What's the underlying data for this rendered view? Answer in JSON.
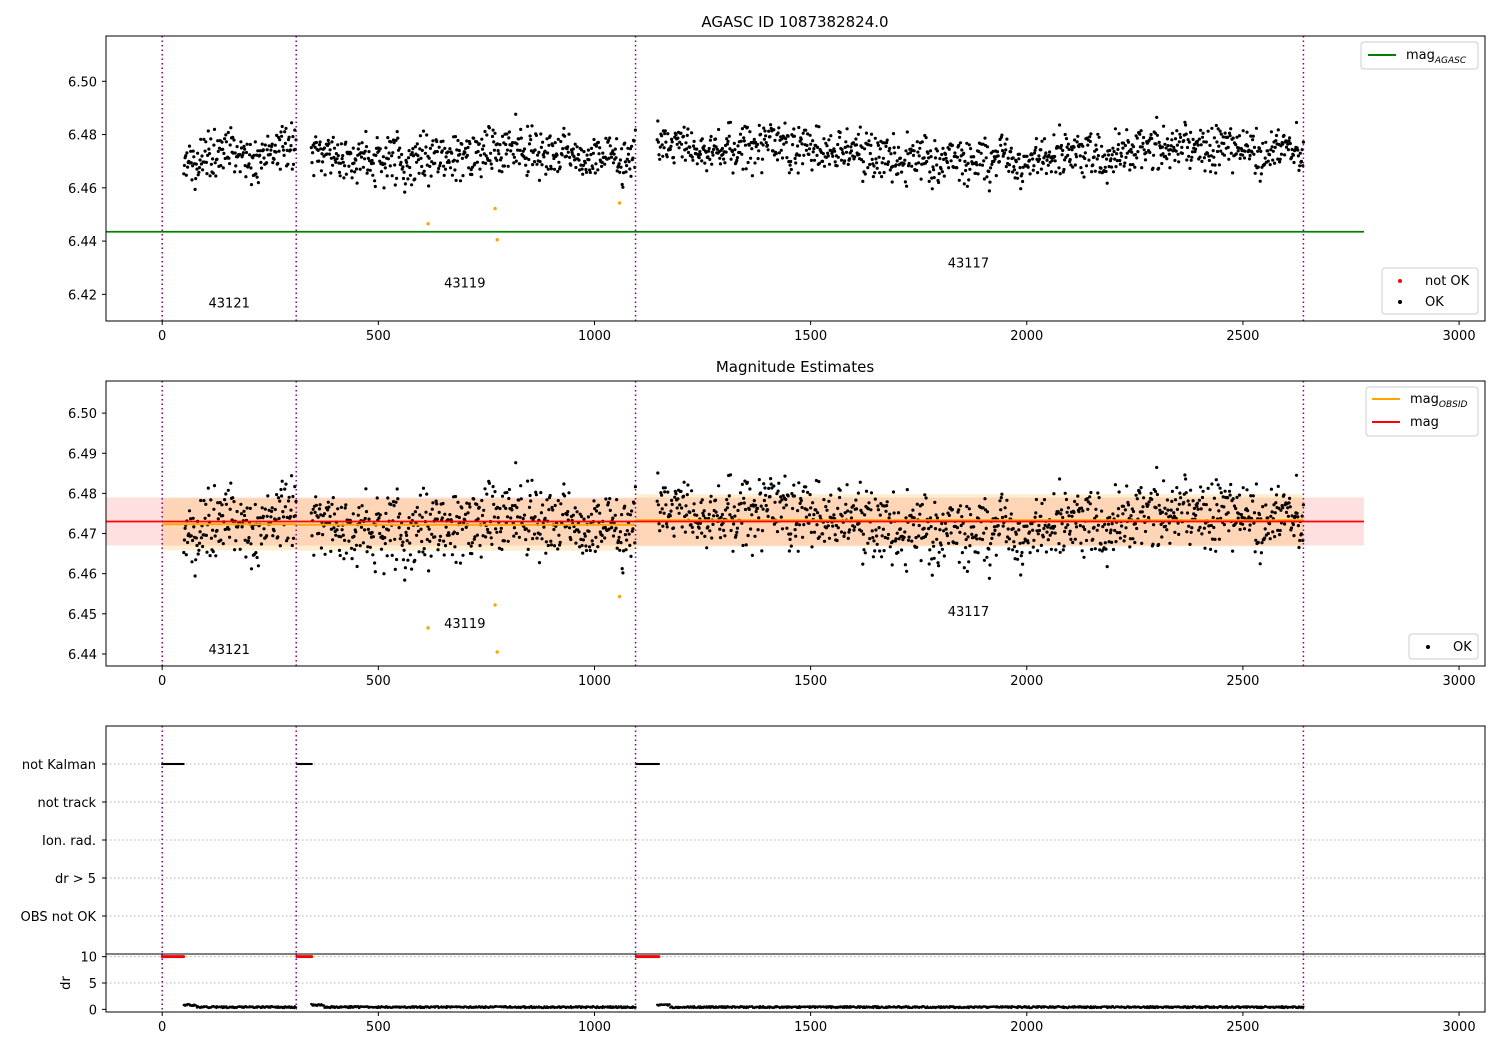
{
  "chart_data": [
    {
      "type": "scatter",
      "title": "AGASC ID 1087382824.0",
      "xlim": [
        -130,
        3060
      ],
      "ylim": [
        6.41,
        6.517
      ],
      "xticks": [
        0,
        500,
        1000,
        1500,
        2000,
        2500,
        3000
      ],
      "yticks": [
        6.42,
        6.44,
        6.46,
        6.48,
        6.5
      ],
      "ytick_labels": [
        "6.42",
        "6.44",
        "6.46",
        "6.48",
        "6.50"
      ],
      "obsid_boundaries": [
        0,
        310,
        1095,
        2640
      ],
      "obsid_labels": [
        {
          "text": "43121",
          "x": 155,
          "y": 6.415
        },
        {
          "text": "43119",
          "x": 700,
          "y": 6.4225
        },
        {
          "text": "43117",
          "x": 1865,
          "y": 6.43
        }
      ],
      "lines": [
        {
          "name": "mag_AGASC",
          "label": "mag",
          "sub": "AGASC",
          "color": "#008000",
          "y": 6.4435,
          "x": [
            -130,
            2780
          ]
        }
      ],
      "ok_segments": [
        {
          "x0": 50,
          "x1": 310,
          "mean": 6.4725,
          "spread": 0.0065
        },
        {
          "x0": 345,
          "x1": 1095,
          "mean": 6.4725,
          "spread": 0.0065
        },
        {
          "x0": 1145,
          "x1": 2640,
          "mean": 6.4735,
          "spread": 0.0062
        }
      ],
      "flagged_points": [
        {
          "x": 615,
          "y": 6.4465
        },
        {
          "x": 770,
          "y": 6.4522
        },
        {
          "x": 775,
          "y": 6.4405
        },
        {
          "x": 1058,
          "y": 6.4543
        }
      ],
      "flagged_color": "#ffa500",
      "legend_lower": [
        {
          "label": "not OK",
          "color": "#ff0000"
        },
        {
          "label": "OK",
          "color": "#000000"
        }
      ],
      "legend_upper_position": "upper right",
      "legend_lower_position": "lower right"
    },
    {
      "type": "scatter",
      "title": "Magnitude Estimates",
      "xlim": [
        -130,
        3060
      ],
      "ylim": [
        6.437,
        6.508
      ],
      "xticks": [
        0,
        500,
        1000,
        1500,
        2000,
        2500,
        3000
      ],
      "yticks": [
        6.44,
        6.45,
        6.46,
        6.47,
        6.48,
        6.49,
        6.5
      ],
      "ytick_labels": [
        "6.44",
        "6.45",
        "6.46",
        "6.47",
        "6.48",
        "6.49",
        "6.50"
      ],
      "obsid_boundaries": [
        0,
        310,
        1095,
        2640
      ],
      "obsid_labels": [
        {
          "text": "43121",
          "x": 155,
          "y": 6.44
        },
        {
          "text": "43119",
          "x": 700,
          "y": 6.4465
        },
        {
          "text": "43117",
          "x": 1865,
          "y": 6.4495
        }
      ],
      "mag": {
        "label": "mag",
        "color": "#ff0000",
        "y": 6.473,
        "band": [
          6.467,
          6.479
        ],
        "x": [
          -130,
          2780
        ]
      },
      "mag_obsid": {
        "label": "mag",
        "sub": "OBSID",
        "color": "#ffa500",
        "segments": [
          {
            "x0": 0,
            "x1": 310,
            "y": 6.4723,
            "band": [
              6.4658,
              6.4788
            ]
          },
          {
            "x0": 310,
            "x1": 1095,
            "y": 6.4722,
            "band": [
              6.4657,
              6.4787
            ]
          },
          {
            "x0": 1095,
            "x1": 2640,
            "y": 6.4733,
            "band": [
              6.4668,
              6.4798
            ]
          }
        ]
      },
      "flagged_points": [
        {
          "x": 615,
          "y": 6.4465
        },
        {
          "x": 770,
          "y": 6.4522
        },
        {
          "x": 775,
          "y": 6.4405
        },
        {
          "x": 1058,
          "y": 6.4543
        }
      ],
      "legend_upper_position": "upper right",
      "legend_lower": [
        {
          "label": "OK",
          "color": "#000000"
        }
      ],
      "legend_lower_position": "lower right"
    },
    {
      "type": "scatter",
      "title": "",
      "xlim": [
        -130,
        3060
      ],
      "xticks": [
        0,
        500,
        1000,
        1500,
        2000,
        2500,
        3000
      ],
      "flag_rows": [
        "not Kalman",
        "not track",
        "Ion. rad.",
        "dr > 5",
        "OBS not OK"
      ],
      "obsid_boundaries": [
        0,
        310,
        1095,
        2640
      ],
      "not_kalman_intervals": [
        [
          0,
          52
        ],
        [
          312,
          348
        ],
        [
          1097,
          1150
        ]
      ],
      "dr": {
        "ylabel": "dr",
        "ylim": [
          -0.5,
          10.5
        ],
        "yticks": [
          0,
          5,
          10
        ],
        "ytick_labels": [
          "0",
          "5",
          "10"
        ],
        "high_value": 10,
        "high_color": "#ff0000",
        "low_level": 0.25
      }
    }
  ]
}
